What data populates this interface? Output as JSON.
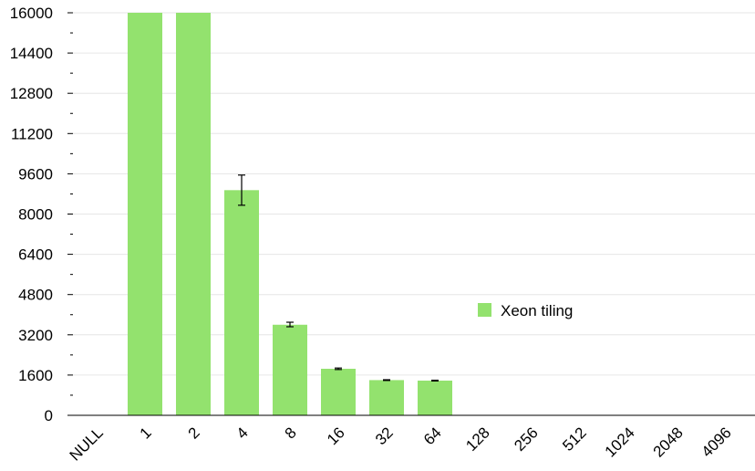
{
  "chart_data": {
    "type": "bar",
    "title": "",
    "xlabel": "",
    "ylabel": "",
    "categories": [
      "NULL",
      "1",
      "2",
      "4",
      "8",
      "16",
      "32",
      "64",
      "128",
      "256",
      "512",
      "1024",
      "2048",
      "4096"
    ],
    "series": [
      {
        "name": "Xeon tiling",
        "values": [
          null,
          16000,
          16000,
          8950,
          3600,
          1850,
          1400,
          1380,
          null,
          null,
          null,
          null,
          null,
          null
        ],
        "error_low": [
          null,
          null,
          null,
          8350,
          3520,
          1820,
          1385,
          1365,
          null,
          null,
          null,
          null,
          null,
          null
        ],
        "error_high": [
          null,
          null,
          null,
          9550,
          3700,
          1880,
          1415,
          1395,
          null,
          null,
          null,
          null,
          null,
          null
        ],
        "color": "#93e26e"
      }
    ],
    "ylim": [
      0,
      16000
    ],
    "yticks": [
      0,
      1600,
      3200,
      4800,
      6400,
      8000,
      9600,
      11200,
      12800,
      14400,
      16000
    ],
    "grid": true,
    "legend": "center-right"
  }
}
